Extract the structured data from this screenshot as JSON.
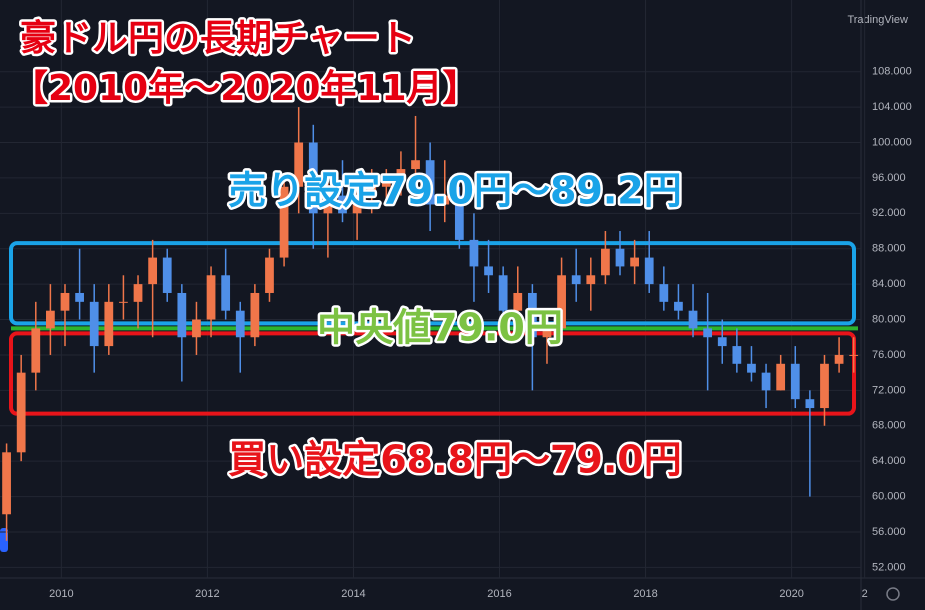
{
  "chart_data": {
    "type": "candlestick",
    "title": "豪ドル円の長期チャート",
    "subtitle": "【2010年～2020年11月】",
    "brand": "TradingView",
    "x": [
      2009.25,
      2009.45,
      2009.65,
      2009.85,
      2010.05,
      2010.25,
      2010.45,
      2010.65,
      2010.85,
      2011.05,
      2011.25,
      2011.45,
      2011.65,
      2011.85,
      2012.05,
      2012.25,
      2012.45,
      2012.65,
      2012.85,
      2013.05,
      2013.25,
      2013.45,
      2013.65,
      2013.85,
      2014.05,
      2014.25,
      2014.45,
      2014.65,
      2014.85,
      2015.05,
      2015.25,
      2015.45,
      2015.65,
      2015.85,
      2016.05,
      2016.25,
      2016.45,
      2016.65,
      2016.85,
      2017.05,
      2017.25,
      2017.45,
      2017.65,
      2017.85,
      2018.05,
      2018.25,
      2018.45,
      2018.65,
      2018.85,
      2019.05,
      2019.25,
      2019.45,
      2019.65,
      2019.85,
      2020.05,
      2020.25,
      2020.45,
      2020.65,
      2020.85
    ],
    "open": [
      58,
      65,
      74,
      79,
      81,
      83,
      82,
      77,
      82,
      82,
      84,
      87,
      83,
      78,
      80,
      85,
      81,
      78,
      83,
      87,
      95,
      100,
      92,
      94,
      92,
      94,
      95,
      96,
      97,
      98,
      93,
      94,
      89,
      86,
      85,
      81,
      83,
      78,
      79,
      85,
      84,
      85,
      88,
      86,
      87,
      84,
      82,
      81,
      79,
      78,
      77,
      75,
      74,
      72,
      75,
      71,
      70,
      75,
      76
    ],
    "high": [
      66,
      76,
      82,
      84,
      84,
      88,
      84,
      84,
      85,
      85,
      89,
      88,
      84,
      82,
      86,
      88,
      82,
      84,
      88,
      96,
      104,
      102,
      96,
      98,
      96,
      97,
      97,
      99,
      103,
      100,
      98,
      95,
      92,
      89,
      86,
      86,
      84,
      80,
      87,
      88,
      87,
      90,
      90,
      89,
      90,
      86,
      84,
      84,
      83,
      80,
      79,
      77,
      75,
      76,
      77,
      72,
      76,
      78,
      78
    ],
    "low": [
      55,
      64,
      72,
      76,
      77,
      80,
      74,
      76,
      80,
      79,
      78,
      82,
      73,
      76,
      78,
      80,
      74,
      77,
      82,
      86,
      92,
      88,
      87,
      91,
      89,
      92,
      93,
      94,
      95,
      90,
      91,
      88,
      82,
      83,
      78,
      79,
      72,
      75,
      78,
      82,
      81,
      84,
      85,
      84,
      83,
      81,
      80,
      78,
      72,
      75,
      74,
      73,
      70,
      72,
      70,
      60,
      68,
      74,
      74
    ],
    "close": [
      65,
      74,
      79,
      81,
      83,
      82,
      77,
      82,
      82,
      84,
      87,
      83,
      78,
      80,
      85,
      81,
      78,
      83,
      87,
      95,
      100,
      92,
      94,
      92,
      94,
      95,
      96,
      97,
      98,
      93,
      94,
      89,
      86,
      85,
      81,
      83,
      78,
      79,
      85,
      84,
      85,
      88,
      86,
      87,
      84,
      82,
      81,
      79,
      78,
      77,
      75,
      74,
      72,
      75,
      71,
      70,
      75,
      76,
      76
    ],
    "up_color": "#f0764a",
    "down_color": "#4f8fe8",
    "xlim": [
      2009.16,
      2020.95
    ],
    "ylim": [
      50.8,
      116.1
    ],
    "xticks": [
      2010,
      2012,
      2014,
      2016,
      2018,
      2020,
      {
        "value": 2021,
        "label": "2"
      }
    ],
    "yticks": [
      {
        "value": 52,
        "label": "52.000"
      },
      {
        "value": 56,
        "label": "56.000"
      },
      {
        "value": 60,
        "label": "60.000"
      },
      {
        "value": 64,
        "label": "64.000"
      },
      {
        "value": 68,
        "label": "68.000"
      },
      {
        "value": 72,
        "label": "72.000"
      },
      {
        "value": 76,
        "label": "76.000"
      },
      {
        "value": 80,
        "label": "80.000"
      },
      {
        "value": 84,
        "label": "84.000"
      },
      {
        "value": 88,
        "label": "88.000"
      },
      {
        "value": 92,
        "label": "92.000"
      },
      {
        "value": 96,
        "label": "96.000"
      },
      {
        "value": 100,
        "label": "100.000"
      },
      {
        "value": 104,
        "label": "104.000"
      },
      {
        "value": 108,
        "label": "108.000"
      }
    ],
    "grid": true,
    "sell_zone": {
      "label": "売り設定79.0円～89.2円",
      "from": 79.0,
      "to": 89.2,
      "color": "#1aa3e8"
    },
    "buy_zone": {
      "label": "買い設定68.8円～79.0円",
      "from": 68.8,
      "to": 79.0,
      "color": "#e8141a"
    },
    "median": {
      "label": "中央値79.0円",
      "value": 79.0,
      "color": "#2db42d",
      "text_color": "#7cc243"
    }
  }
}
